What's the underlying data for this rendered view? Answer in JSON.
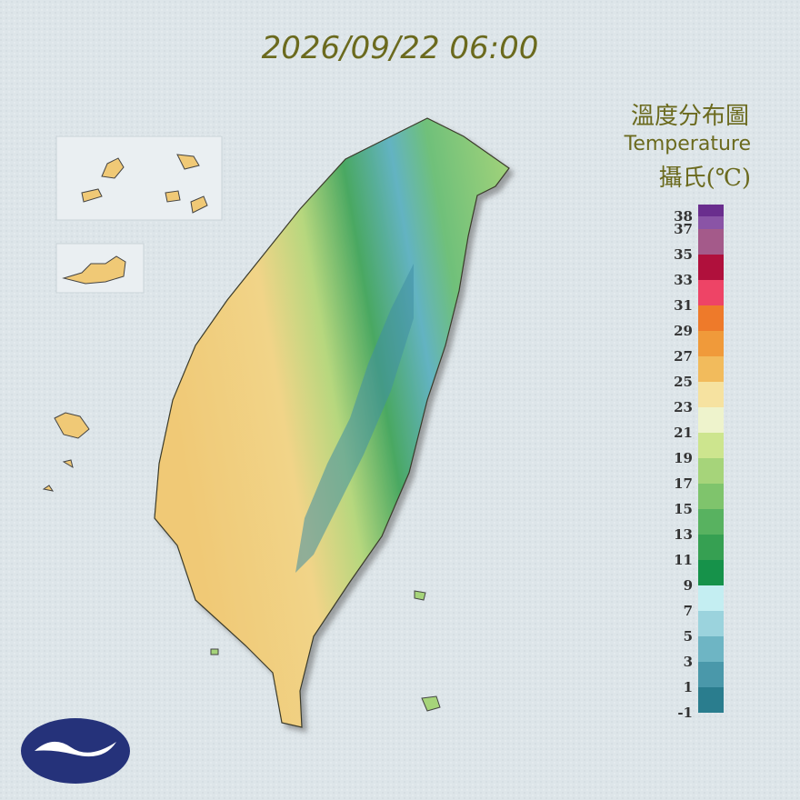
{
  "timestamp": "2026/09/22 06:00",
  "legend": {
    "title": "溫度分布圖",
    "subtitle": "Temperature",
    "unit": "攝氏(℃)",
    "levels": [
      38,
      37,
      35,
      33,
      31,
      29,
      27,
      25,
      23,
      21,
      19,
      17,
      15,
      13,
      11,
      9,
      7,
      5,
      3,
      1,
      -1
    ],
    "colors": [
      "#6a2e8e",
      "#8a54a6",
      "#a45a8a",
      "#b0103c",
      "#ee4466",
      "#ee7a2a",
      "#f09a3a",
      "#f2bb5c",
      "#f6e2a0",
      "#eef3cc",
      "#cde58e",
      "#a6d47a",
      "#7fc46c",
      "#58b260",
      "#36a052",
      "#16924a",
      "#c4eef2",
      "#9bd3dd",
      "#6eb5c4",
      "#4a98aa",
      "#2a7d8e"
    ]
  }
}
